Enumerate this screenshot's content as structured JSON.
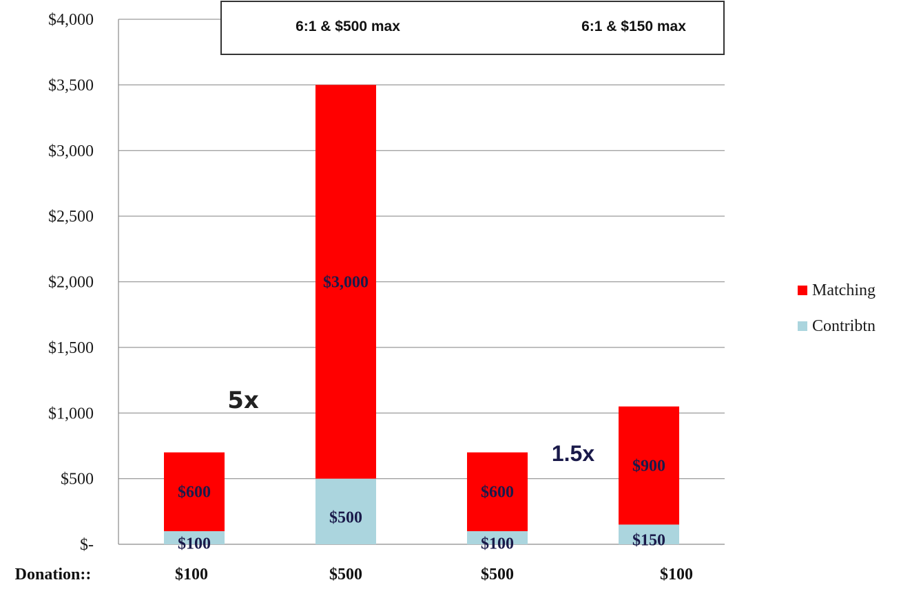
{
  "chart_data": {
    "type": "bar",
    "stacked": true,
    "xlabel_prefix": "Donation::",
    "categories": [
      "$100",
      "$500",
      "$500",
      "$100"
    ],
    "series": [
      {
        "name": "Contribtn",
        "values": [
          100,
          500,
          100,
          150
        ],
        "labels": [
          "$100",
          "$500",
          "$100",
          "$150"
        ],
        "color": "#abd5de"
      },
      {
        "name": "Matching",
        "values": [
          600,
          3000,
          600,
          900
        ],
        "labels": [
          "$600",
          "$3,000",
          "$600",
          "$900"
        ],
        "color": "#ff0000"
      }
    ],
    "ylim": [
      0,
      4000
    ],
    "yticks": [
      0,
      500,
      1000,
      1500,
      2000,
      2500,
      3000,
      3500,
      4000
    ],
    "ytick_labels": [
      "$-",
      "$500",
      "$1,000",
      "$1,500",
      "$2,000",
      "$2,500",
      "$3,000",
      "$3,500",
      "$4,000"
    ],
    "grid": true,
    "legend_position": "right",
    "header_box": [
      "6:1 & $500 max",
      "6:1 & $150 max"
    ],
    "annotations": [
      "5x",
      "1.5x"
    ]
  }
}
